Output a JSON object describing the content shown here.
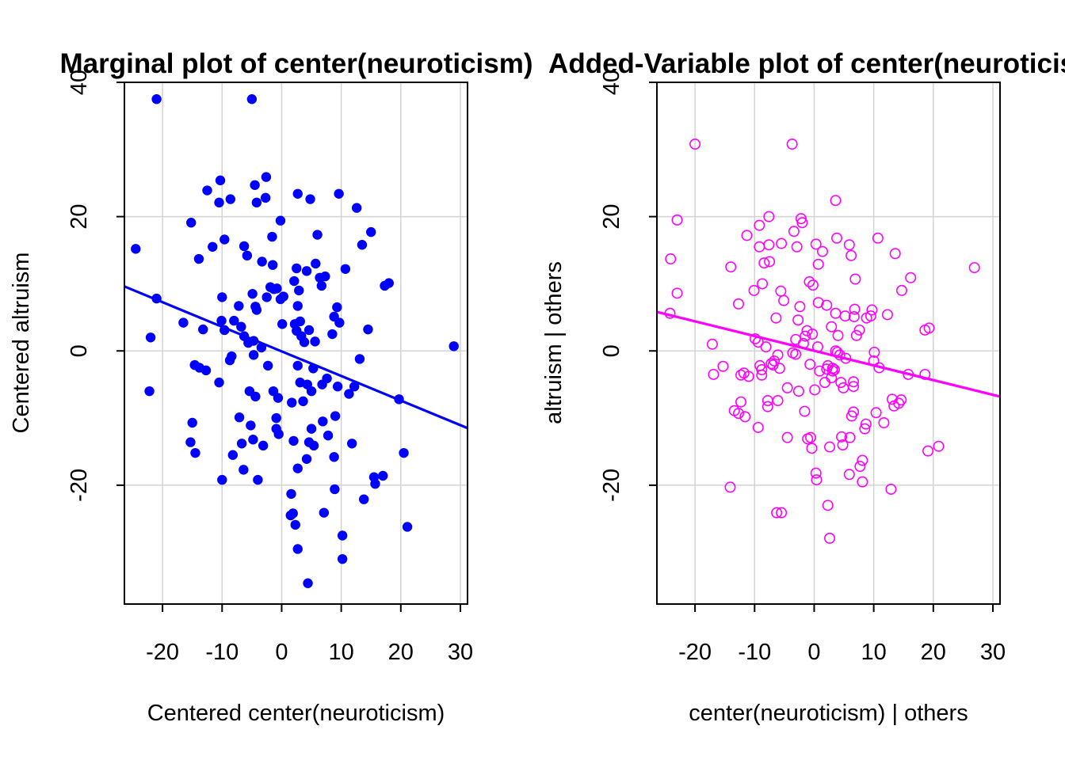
{
  "chart_data": [
    {
      "type": "scatter",
      "title": "Marginal plot of center(neuroticism)",
      "xlabel": "Centered center(neuroticism)",
      "ylabel": "Centered altruism",
      "xticks": [
        "-20",
        "-10",
        "0",
        "10",
        "20",
        "30"
      ],
      "yticks": [
        "-20",
        "0",
        "20",
        "40"
      ],
      "xlim": [
        -26.4,
        31.2
      ],
      "ylim": [
        -37.7,
        40
      ],
      "grid": true,
      "marker": "filled-circle",
      "point_color": "#0000FF",
      "line_color": "#0000FF",
      "fit_line": {
        "x": [
          -26.4,
          31.2
        ],
        "y": [
          9.6,
          -11.5
        ]
      },
      "points": [
        [
          -21,
          37.5
        ],
        [
          -5,
          37.5
        ],
        [
          -24.5,
          15.2
        ],
        [
          -22,
          2
        ],
        [
          -22.2,
          -6
        ],
        [
          -21,
          7.8
        ],
        [
          -16.5,
          4.2
        ],
        [
          -15.2,
          19.1
        ],
        [
          -15,
          -10.7
        ],
        [
          -15.3,
          -13.6
        ],
        [
          -14.6,
          -2.1
        ],
        [
          -14.5,
          -15.2
        ],
        [
          -13.8,
          -2.5
        ],
        [
          -13.9,
          13.7
        ],
        [
          -13.2,
          3.2
        ],
        [
          -12.7,
          -2.9
        ],
        [
          -12.5,
          23.9
        ],
        [
          -11.6,
          15.5
        ],
        [
          -10.5,
          22.1
        ],
        [
          -10.3,
          25.4
        ],
        [
          -10,
          8
        ],
        [
          -10.1,
          4.5
        ],
        [
          -10.5,
          -4.7
        ],
        [
          -10,
          -19.2
        ],
        [
          -9.6,
          16.6
        ],
        [
          -9.6,
          3.1
        ],
        [
          -8.6,
          22.6
        ],
        [
          -8.4,
          -0.8
        ],
        [
          -8.7,
          -1.4
        ],
        [
          -8.2,
          -15.5
        ],
        [
          -8,
          4.5
        ],
        [
          -7.1,
          -9.9
        ],
        [
          -7.2,
          6.7
        ],
        [
          -6.7,
          -13.8
        ],
        [
          -6.4,
          -17.7
        ],
        [
          -6.8,
          3.6
        ],
        [
          -6.3,
          2.2
        ],
        [
          -6.3,
          15.6
        ],
        [
          -5.8,
          14.2
        ],
        [
          -5.6,
          1.2
        ],
        [
          -5.2,
          -11.1
        ],
        [
          -5.4,
          -6
        ],
        [
          -4.9,
          8.5
        ],
        [
          -4.7,
          1.5
        ],
        [
          -4.7,
          -0.6
        ],
        [
          -4.8,
          -13.2
        ],
        [
          -4.5,
          24.7
        ],
        [
          -4.4,
          6.6
        ],
        [
          -4.2,
          6.1
        ],
        [
          -4.2,
          22.1
        ],
        [
          -4.4,
          -6.8
        ],
        [
          -4,
          -19.2
        ],
        [
          -3.3,
          13.3
        ],
        [
          -3.4,
          0.5
        ],
        [
          -3.1,
          -14.1
        ],
        [
          -2.7,
          22.8
        ],
        [
          -2.6,
          25.9
        ],
        [
          -2.5,
          8
        ],
        [
          -2.3,
          -2.2
        ],
        [
          -1.9,
          9.5
        ],
        [
          -1.5,
          12.8
        ],
        [
          -1.6,
          17
        ],
        [
          -1.4,
          -6
        ],
        [
          -1.3,
          9.2
        ],
        [
          -0.9,
          -11.6
        ],
        [
          -0.9,
          -10
        ],
        [
          -0.8,
          9.3
        ],
        [
          -0.6,
          -7
        ],
        [
          -0.5,
          -12.4
        ],
        [
          -0.2,
          7.7
        ],
        [
          -0.2,
          19.4
        ],
        [
          0.1,
          4
        ],
        [
          0.3,
          8.1
        ],
        [
          1.7,
          -7.7
        ],
        [
          1.5,
          -24.5
        ],
        [
          1.6,
          -21.3
        ],
        [
          2,
          -13.4
        ],
        [
          1.9,
          -24.2
        ],
        [
          2.1,
          10.4
        ],
        [
          2.3,
          -25.9
        ],
        [
          2.7,
          -2.2
        ],
        [
          2.2,
          4
        ],
        [
          2.5,
          3
        ],
        [
          2.5,
          12.3
        ],
        [
          2.7,
          -29.5
        ],
        [
          2.7,
          23.4
        ],
        [
          2.7,
          -17.5
        ],
        [
          2.7,
          6.7
        ],
        [
          2.9,
          9
        ],
        [
          3.1,
          4.4
        ],
        [
          3.1,
          -4.7
        ],
        [
          3.3,
          2.2
        ],
        [
          3.6,
          -7.5
        ],
        [
          3.8,
          1.3
        ],
        [
          4.2,
          11.9
        ],
        [
          4.2,
          -16.1
        ],
        [
          4.3,
          -5
        ],
        [
          4.6,
          3.1
        ],
        [
          4.4,
          -34.6
        ],
        [
          4.6,
          -13.6
        ],
        [
          4.8,
          22.6
        ],
        [
          5,
          -6
        ],
        [
          5,
          -11.6
        ],
        [
          5.4,
          -14.1
        ],
        [
          5.3,
          -2.6
        ],
        [
          5.6,
          1.4
        ],
        [
          5.7,
          13
        ],
        [
          6,
          17.3
        ],
        [
          6.4,
          10.9
        ],
        [
          6.7,
          9.7
        ],
        [
          6.8,
          -5
        ],
        [
          6.9,
          -10.5
        ],
        [
          7.1,
          -24.1
        ],
        [
          7.3,
          11.1
        ],
        [
          7.6,
          -4.1
        ],
        [
          7.8,
          -12.6
        ],
        [
          8.5,
          2.5
        ],
        [
          8.9,
          -20.6
        ],
        [
          8.8,
          5.1
        ],
        [
          8.8,
          -15.8
        ],
        [
          9,
          -9.7
        ],
        [
          9.3,
          6.5
        ],
        [
          9.4,
          -5.3
        ],
        [
          9.7,
          4.2
        ],
        [
          9.6,
          23.4
        ],
        [
          10.2,
          -27.5
        ],
        [
          10.2,
          -31
        ],
        [
          10.7,
          12.2
        ],
        [
          11.3,
          -6.4
        ],
        [
          11.8,
          -13.8
        ],
        [
          12.2,
          -5.3
        ],
        [
          12.6,
          21.3
        ],
        [
          13.1,
          -1.2
        ],
        [
          13.5,
          15.8
        ],
        [
          13.8,
          -22.1
        ],
        [
          14.5,
          3.2
        ],
        [
          15,
          17.7
        ],
        [
          15.5,
          -18.8
        ],
        [
          15.7,
          -19.8
        ],
        [
          17,
          -18.6
        ],
        [
          17.3,
          9.7
        ],
        [
          18,
          10.1
        ],
        [
          19.7,
          -7.2
        ],
        [
          20.5,
          -15.2
        ],
        [
          21.1,
          -26.2
        ],
        [
          28.9,
          0.7
        ]
      ]
    },
    {
      "type": "scatter",
      "title": "Added-Variable plot of center(neuroticism)",
      "xlabel": "center(neuroticism) | others",
      "ylabel": "altruism  | others",
      "xticks": [
        "-20",
        "-10",
        "0",
        "10",
        "20",
        "30"
      ],
      "yticks": [
        "-20",
        "0",
        "20",
        "40"
      ],
      "xlim": [
        -26.4,
        31.2
      ],
      "ylim": [
        -37.7,
        40
      ],
      "grid": true,
      "marker": "open-circle",
      "point_color": "#FF00FF",
      "line_color": "#FF00FF",
      "fit_line": {
        "x": [
          -26.4,
          31.2
        ],
        "y": [
          5.8,
          -6.8
        ]
      },
      "points": [
        [
          -20,
          30.8
        ],
        [
          -23,
          19.5
        ],
        [
          -24.1,
          13.7
        ],
        [
          -23,
          8.6
        ],
        [
          -24.2,
          5.6
        ],
        [
          -17.1,
          1
        ],
        [
          -16.9,
          -3.5
        ],
        [
          -15.3,
          -2.3
        ],
        [
          -14.1,
          -20.3
        ],
        [
          -14,
          12.5
        ],
        [
          -13.4,
          -8.9
        ],
        [
          -12.7,
          -9.3
        ],
        [
          -12.7,
          7
        ],
        [
          -12.3,
          -3.6
        ],
        [
          -12.3,
          -7.6
        ],
        [
          -11.8,
          -3.3
        ],
        [
          -11.6,
          -9.8
        ],
        [
          -11.3,
          17.2
        ],
        [
          -11,
          -3.8
        ],
        [
          -10.1,
          9
        ],
        [
          -9.9,
          1.8
        ],
        [
          -9.4,
          1.3
        ],
        [
          -9.4,
          -11.4
        ],
        [
          -9.2,
          15.5
        ],
        [
          -9.2,
          18.7
        ],
        [
          -9.1,
          -2.2
        ],
        [
          -8.8,
          -3.6
        ],
        [
          -8.8,
          -2.8
        ],
        [
          -8.7,
          10
        ],
        [
          -8.4,
          13.1
        ],
        [
          -8.1,
          0.6
        ],
        [
          -7.8,
          -7.4
        ],
        [
          -7.8,
          -8.3
        ],
        [
          -7.6,
          20
        ],
        [
          -7.6,
          15.8
        ],
        [
          -7.5,
          13.3
        ],
        [
          -7.2,
          -1.9
        ],
        [
          -6.9,
          -2.1
        ],
        [
          -6.7,
          -1.5
        ],
        [
          -6.4,
          4.9
        ],
        [
          -6.3,
          -24.1
        ],
        [
          -6.1,
          -0.6
        ],
        [
          -6.1,
          -7.4
        ],
        [
          -5.8,
          -2.6
        ],
        [
          -5.5,
          16
        ],
        [
          -5.6,
          8.9
        ],
        [
          -5.5,
          -24.1
        ],
        [
          -5.1,
          7.5
        ],
        [
          -4.5,
          -5.5
        ],
        [
          -4.5,
          -12.9
        ],
        [
          -3.7,
          30.8
        ],
        [
          -3.6,
          -0.3
        ],
        [
          -3.4,
          17.8
        ],
        [
          -3.1,
          -0.5
        ],
        [
          -3.1,
          1.7
        ],
        [
          -2.9,
          15.5
        ],
        [
          -2.7,
          4.6
        ],
        [
          -2.6,
          -6
        ],
        [
          -2.4,
          6.6
        ],
        [
          -2.2,
          19.7
        ],
        [
          -2,
          19.1
        ],
        [
          -1.8,
          1.1
        ],
        [
          -1.6,
          -9
        ],
        [
          -1.5,
          2.2
        ],
        [
          -1.2,
          3
        ],
        [
          -1.1,
          -13.1
        ],
        [
          -0.8,
          10.3
        ],
        [
          -0.7,
          -2
        ],
        [
          -0.6,
          -12.9
        ],
        [
          -0.4,
          -14.5
        ],
        [
          -0.3,
          2.5
        ],
        [
          -0.2,
          9.8
        ],
        [
          0.3,
          15.9
        ],
        [
          0.1,
          -5.8
        ],
        [
          0.3,
          -18.2
        ],
        [
          0.4,
          -19.2
        ],
        [
          0.6,
          0.6
        ],
        [
          0.7,
          7.2
        ],
        [
          0.7,
          12.9
        ],
        [
          0.9,
          -3
        ],
        [
          1.4,
          14.8
        ],
        [
          1.8,
          -4.7
        ],
        [
          2.1,
          6.8
        ],
        [
          2.1,
          -2.7
        ],
        [
          2.3,
          -23
        ],
        [
          2.3,
          -2.2
        ],
        [
          2.6,
          -14.3
        ],
        [
          2.6,
          -27.9
        ],
        [
          2.9,
          3.6
        ],
        [
          2.9,
          -4
        ],
        [
          3.1,
          -2.6
        ],
        [
          3.1,
          -3
        ],
        [
          3.4,
          -2.8
        ],
        [
          3.6,
          22.4
        ],
        [
          3.6,
          5.6
        ],
        [
          3.6,
          0
        ],
        [
          3.8,
          16.8
        ],
        [
          3.9,
          -0.2
        ],
        [
          4,
          2.3
        ],
        [
          4.3,
          -0.6
        ],
        [
          4.5,
          -4.7
        ],
        [
          4.6,
          -12.8
        ],
        [
          4.8,
          -14
        ],
        [
          4.9,
          -5.5
        ],
        [
          5.2,
          5.2
        ],
        [
          5.3,
          -1.1
        ],
        [
          5.9,
          -18.4
        ],
        [
          5.9,
          15.8
        ],
        [
          6,
          -12.9
        ],
        [
          6.2,
          14.2
        ],
        [
          6.3,
          -9.7
        ],
        [
          6.6,
          -9.1
        ],
        [
          6.9,
          10.7
        ],
        [
          6.8,
          6.2
        ],
        [
          6.7,
          5.1
        ],
        [
          6.6,
          -4.6
        ],
        [
          6.6,
          -5.3
        ],
        [
          7.1,
          2.3
        ],
        [
          7.6,
          3.1
        ],
        [
          7.7,
          -17.2
        ],
        [
          8.1,
          -16.3
        ],
        [
          8.1,
          -19.5
        ],
        [
          8.5,
          -11.6
        ],
        [
          8.7,
          -10.9
        ],
        [
          8.8,
          4.9
        ],
        [
          9.5,
          5.2
        ],
        [
          9.7,
          6.1
        ],
        [
          10,
          -1.5
        ],
        [
          10.1,
          -0.2
        ],
        [
          10.4,
          -9.2
        ],
        [
          10.7,
          16.8
        ],
        [
          10.9,
          -2.5
        ],
        [
          11.7,
          -10.7
        ],
        [
          12.3,
          5.4
        ],
        [
          12.9,
          -20.6
        ],
        [
          13.1,
          -7.2
        ],
        [
          13.4,
          -8.2
        ],
        [
          13.6,
          14.5
        ],
        [
          14.2,
          -7.8
        ],
        [
          14.6,
          -7.3
        ],
        [
          14.7,
          9
        ],
        [
          15.8,
          -3.5
        ],
        [
          16.2,
          10.9
        ],
        [
          18.6,
          -3.5
        ],
        [
          18.6,
          3.1
        ],
        [
          19.1,
          -14.9
        ],
        [
          19.3,
          3.4
        ],
        [
          20.9,
          -14.2
        ],
        [
          26.9,
          12.4
        ]
      ]
    }
  ]
}
